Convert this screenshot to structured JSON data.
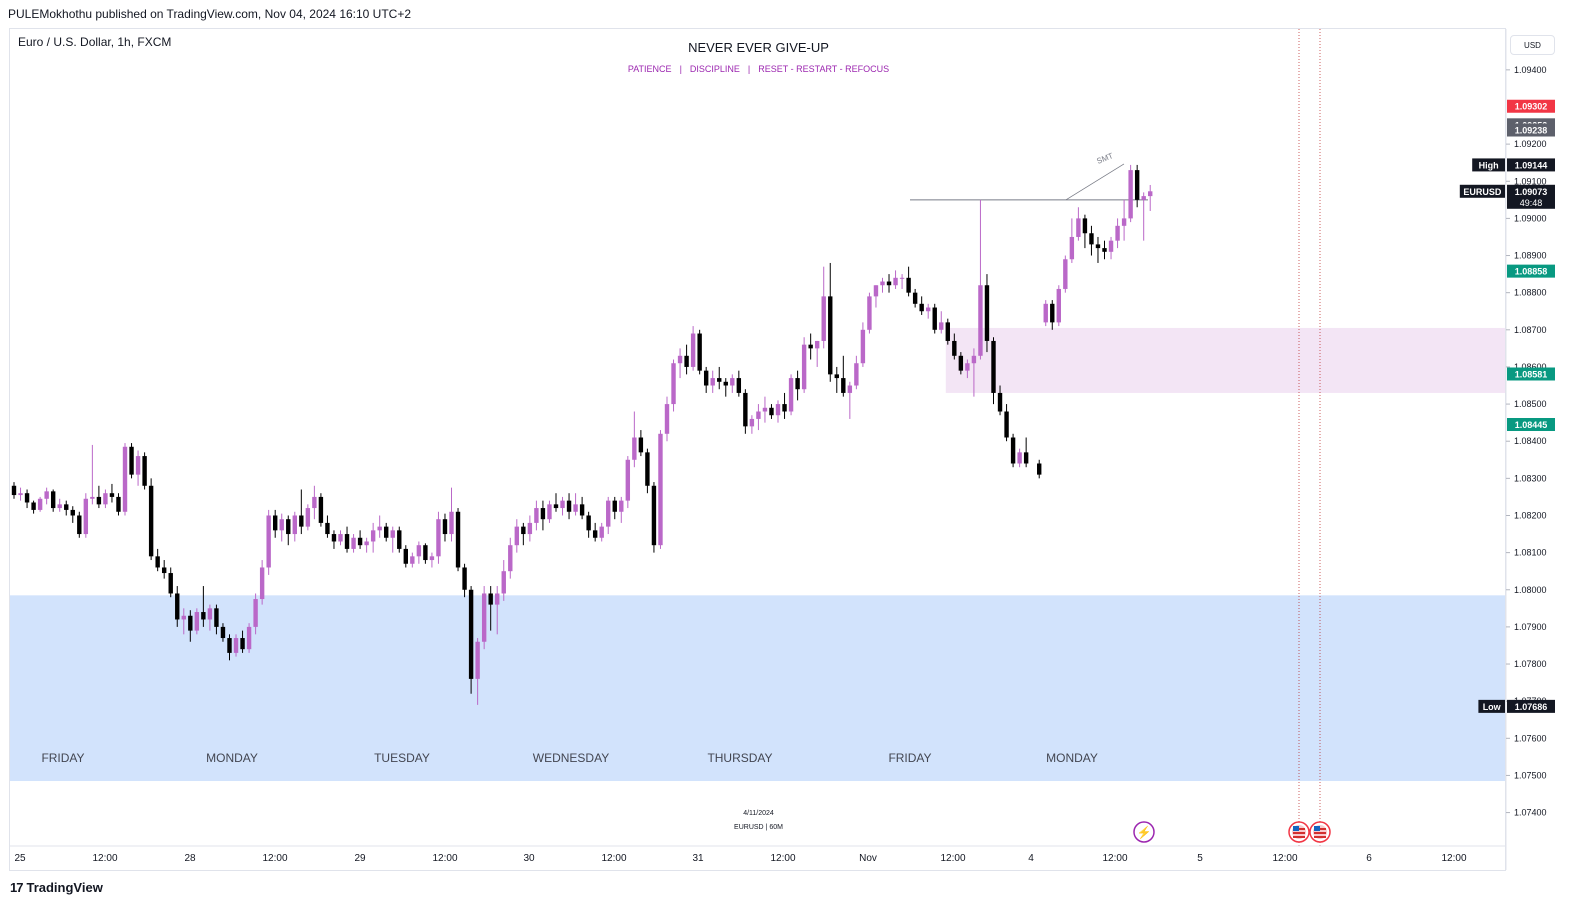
{
  "header": {
    "published": "PULEMokhothu published on TradingView.com, Nov 04, 2024 16:10 UTC+2",
    "symbol": "Euro / U.S. Dollar, 1h, FXCM",
    "currency": "USD",
    "brand": "TradingView",
    "brand_mark": "17"
  },
  "annotations": {
    "title": "NEVER EVER GIVE-UP",
    "subtitle_items": [
      "PATIENCE",
      "DISCIPLINE",
      "RESET - RESTART - REFOCUS"
    ],
    "subtitle_separator": "|",
    "smt": "SMT",
    "watermark_date": "4/11/2024",
    "watermark_symbol": "EURUSD | 60M",
    "days": [
      "FRIDAY",
      "MONDAY",
      "TUESDAY",
      "WEDNESDAY",
      "THURSDAY",
      "FRIDAY",
      "MONDAY"
    ]
  },
  "colors": {
    "bull": "#ba68c8",
    "bear": "#000000",
    "demand_zone": "#d2e3fc",
    "fvg_zone": "#f3e5f5",
    "green_label": "#089981",
    "red_label": "#f23645",
    "grey_label": "#5d606b"
  },
  "chart_data": {
    "type": "candlestick",
    "symbol": "EURUSD",
    "timeframe": "1h",
    "ylim": [
      1.0731,
      1.0951
    ],
    "y_ticks": [
      "1.09400",
      "1.09200",
      "1.09100",
      "1.09000",
      "1.08900",
      "1.08800",
      "1.08700",
      "1.08600",
      "1.08500",
      "1.08400",
      "1.08300",
      "1.08200",
      "1.08100",
      "1.08000",
      "1.07900",
      "1.07800",
      "1.07700",
      "1.07600",
      "1.07500",
      "1.07400"
    ],
    "x_ticks": [
      "25",
      "12:00",
      "28",
      "12:00",
      "29",
      "12:00",
      "30",
      "12:00",
      "31",
      "12:00",
      "Nov",
      "12:00",
      "4",
      "12:00",
      "5",
      "12:00",
      "6",
      "12:00"
    ],
    "price_labels": [
      {
        "text": "1.09302",
        "price": 1.09302,
        "kind": "red"
      },
      {
        "text": "1.09252",
        "price": 1.09252,
        "kind": "grey"
      },
      {
        "text": "1.09238",
        "price": 1.09238,
        "kind": "grey"
      },
      {
        "text": "1.09144",
        "price": 1.09144,
        "kind": "dark",
        "tag": "High"
      },
      {
        "text": "1.09073",
        "price": 1.09073,
        "kind": "dark",
        "tag": "EURUSD",
        "sub": "49:48"
      },
      {
        "text": "1.08858",
        "price": 1.08858,
        "kind": "green"
      },
      {
        "text": "1.08581",
        "price": 1.08581,
        "kind": "green"
      },
      {
        "text": "1.08445",
        "price": 1.08445,
        "kind": "green"
      },
      {
        "text": "1.07686",
        "price": 1.07686,
        "kind": "dark",
        "tag": "Low"
      }
    ],
    "zones": [
      {
        "name": "demand",
        "top": 1.07985,
        "bottom": 1.07485,
        "start_bar": 0
      },
      {
        "name": "fvg",
        "top": 1.08705,
        "bottom": 1.0853,
        "start_bar": 143
      }
    ],
    "resistance_price": 1.0905,
    "bars": [
      [
        1.0828,
        1.0829,
        1.08245,
        1.08255
      ],
      [
        1.08255,
        1.08275,
        1.0824,
        1.0826
      ],
      [
        1.0826,
        1.0827,
        1.0822,
        1.08235
      ],
      [
        1.08235,
        1.0824,
        1.08205,
        1.08215
      ],
      [
        1.08215,
        1.0825,
        1.0821,
        1.08245
      ],
      [
        1.08245,
        1.08275,
        1.0823,
        1.08265
      ],
      [
        1.08265,
        1.0827,
        1.0821,
        1.0822
      ],
      [
        1.0822,
        1.08245,
        1.0821,
        1.0823
      ],
      [
        1.0823,
        1.0824,
        1.082,
        1.08215
      ],
      [
        1.08215,
        1.08225,
        1.0818,
        1.082
      ],
      [
        1.082,
        1.0821,
        1.0814,
        1.0815
      ],
      [
        1.0815,
        1.0826,
        1.0814,
        1.08245
      ],
      [
        1.08245,
        1.0839,
        1.0823,
        1.0825
      ],
      [
        1.0825,
        1.0828,
        1.0822,
        1.0823
      ],
      [
        1.0823,
        1.0827,
        1.0822,
        1.0826
      ],
      [
        1.0826,
        1.08285,
        1.08235,
        1.0825
      ],
      [
        1.0825,
        1.0826,
        1.082,
        1.0821
      ],
      [
        1.0821,
        1.08395,
        1.082,
        1.08385
      ],
      [
        1.08385,
        1.08395,
        1.083,
        1.0831
      ],
      [
        1.0831,
        1.08375,
        1.0828,
        1.0836
      ],
      [
        1.0836,
        1.0837,
        1.0827,
        1.0828
      ],
      [
        1.0828,
        1.083,
        1.0808,
        1.0809
      ],
      [
        1.0809,
        1.0811,
        1.0805,
        1.0806
      ],
      [
        1.0806,
        1.0808,
        1.0803,
        1.08045
      ],
      [
        1.08045,
        1.0806,
        1.0798,
        1.0799
      ],
      [
        1.0799,
        1.0801,
        1.079,
        1.0792
      ],
      [
        1.0792,
        1.0795,
        1.0788,
        1.0793
      ],
      [
        1.0793,
        1.07945,
        1.0786,
        1.0789
      ],
      [
        1.0789,
        1.0795,
        1.0788,
        1.0794
      ],
      [
        1.0794,
        1.0801,
        1.079,
        1.0792
      ],
      [
        1.0792,
        1.0796,
        1.0789,
        1.0795
      ],
      [
        1.0795,
        1.0796,
        1.0788,
        1.079
      ],
      [
        1.079,
        1.0791,
        1.0786,
        1.0787
      ],
      [
        1.0787,
        1.0788,
        1.0781,
        1.0783
      ],
      [
        1.0783,
        1.0788,
        1.0782,
        1.0787
      ],
      [
        1.0787,
        1.0789,
        1.0783,
        1.0784
      ],
      [
        1.0784,
        1.0791,
        1.0783,
        1.079
      ],
      [
        1.079,
        1.0799,
        1.0788,
        1.07975
      ],
      [
        1.07975,
        1.0808,
        1.0796,
        1.0806
      ],
      [
        1.0806,
        1.08215,
        1.0804,
        1.082
      ],
      [
        1.082,
        1.08215,
        1.0814,
        1.0816
      ],
      [
        1.0816,
        1.08205,
        1.0813,
        1.0819
      ],
      [
        1.0819,
        1.082,
        1.0812,
        1.0815
      ],
      [
        1.0815,
        1.0821,
        1.0813,
        1.082
      ],
      [
        1.082,
        1.0827,
        1.0815,
        1.0817
      ],
      [
        1.0817,
        1.0823,
        1.0816,
        1.0822
      ],
      [
        1.0822,
        1.0828,
        1.0819,
        1.0825
      ],
      [
        1.0825,
        1.0826,
        1.0817,
        1.0818
      ],
      [
        1.0818,
        1.082,
        1.0814,
        1.0815
      ],
      [
        1.0815,
        1.0816,
        1.0811,
        1.0813
      ],
      [
        1.0813,
        1.0816,
        1.0812,
        1.0815
      ],
      [
        1.0815,
        1.0817,
        1.081,
        1.0811
      ],
      [
        1.0811,
        1.0815,
        1.081,
        1.0814
      ],
      [
        1.0814,
        1.0816,
        1.0811,
        1.0812
      ],
      [
        1.0812,
        1.0814,
        1.081,
        1.0813
      ],
      [
        1.0813,
        1.0818,
        1.081,
        1.0816
      ],
      [
        1.0816,
        1.082,
        1.0814,
        1.0817
      ],
      [
        1.0817,
        1.0818,
        1.0813,
        1.0814
      ],
      [
        1.0814,
        1.0817,
        1.081,
        1.0816
      ],
      [
        1.0816,
        1.0817,
        1.081,
        1.0811
      ],
      [
        1.0811,
        1.0812,
        1.0806,
        1.0807
      ],
      [
        1.0807,
        1.081,
        1.0806,
        1.0809
      ],
      [
        1.0809,
        1.0813,
        1.0807,
        1.0812
      ],
      [
        1.0812,
        1.08125,
        1.0807,
        1.0808
      ],
      [
        1.0808,
        1.081,
        1.0806,
        1.0809
      ],
      [
        1.0809,
        1.0821,
        1.0807,
        1.0819
      ],
      [
        1.0819,
        1.08205,
        1.0813,
        1.0815
      ],
      [
        1.0815,
        1.08275,
        1.0813,
        1.0821
      ],
      [
        1.0821,
        1.0822,
        1.0805,
        1.0806
      ],
      [
        1.0806,
        1.0807,
        1.0798,
        1.08
      ],
      [
        1.08,
        1.0801,
        1.0772,
        1.0776
      ],
      [
        1.0776,
        1.0787,
        1.0769,
        1.0786
      ],
      [
        1.0786,
        1.0801,
        1.0784,
        1.0799
      ],
      [
        1.0799,
        1.0801,
        1.0789,
        1.0796
      ],
      [
        1.0796,
        1.0801,
        1.0788,
        1.0799
      ],
      [
        1.0799,
        1.0808,
        1.0797,
        1.0805
      ],
      [
        1.0805,
        1.0814,
        1.0803,
        1.0812
      ],
      [
        1.0812,
        1.0819,
        1.081,
        1.0817
      ],
      [
        1.0817,
        1.0818,
        1.0812,
        1.0815
      ],
      [
        1.0815,
        1.082,
        1.0813,
        1.0818
      ],
      [
        1.0818,
        1.0824,
        1.0816,
        1.0822
      ],
      [
        1.0822,
        1.0824,
        1.0816,
        1.0819
      ],
      [
        1.0819,
        1.0824,
        1.0818,
        1.0823
      ],
      [
        1.0823,
        1.0826,
        1.0821,
        1.0822
      ],
      [
        1.0822,
        1.0825,
        1.082,
        1.0824
      ],
      [
        1.0824,
        1.0826,
        1.0819,
        1.0821
      ],
      [
        1.0821,
        1.0826,
        1.082,
        1.0823
      ],
      [
        1.0823,
        1.0825,
        1.0819,
        1.082
      ],
      [
        1.082,
        1.0821,
        1.0814,
        1.0816
      ],
      [
        1.0816,
        1.0818,
        1.0813,
        1.0814
      ],
      [
        1.0814,
        1.0818,
        1.0813,
        1.0817
      ],
      [
        1.0817,
        1.0825,
        1.0815,
        1.0824
      ],
      [
        1.0824,
        1.0825,
        1.0819,
        1.0821
      ],
      [
        1.0821,
        1.0825,
        1.0818,
        1.0824
      ],
      [
        1.0824,
        1.0836,
        1.0822,
        1.0835
      ],
      [
        1.0835,
        1.0848,
        1.0833,
        1.0841
      ],
      [
        1.0841,
        1.0843,
        1.0836,
        1.0837
      ],
      [
        1.0837,
        1.0838,
        1.0826,
        1.0828
      ],
      [
        1.0828,
        1.0829,
        1.081,
        1.0812
      ],
      [
        1.0812,
        1.0843,
        1.0811,
        1.0842
      ],
      [
        1.0842,
        1.0852,
        1.084,
        1.085
      ],
      [
        1.085,
        1.0862,
        1.0848,
        1.0861
      ],
      [
        1.0861,
        1.0865,
        1.0857,
        1.0863
      ],
      [
        1.0863,
        1.0866,
        1.0858,
        1.086
      ],
      [
        1.086,
        1.0871,
        1.0859,
        1.0869
      ],
      [
        1.0869,
        1.087,
        1.0858,
        1.0859
      ],
      [
        1.0859,
        1.086,
        1.0853,
        1.0855
      ],
      [
        1.0855,
        1.0859,
        1.0853,
        1.0857
      ],
      [
        1.0857,
        1.086,
        1.0854,
        1.0856
      ],
      [
        1.0856,
        1.0857,
        1.0852,
        1.0855
      ],
      [
        1.0855,
        1.0858,
        1.0853,
        1.0857
      ],
      [
        1.0857,
        1.0859,
        1.0852,
        1.0853
      ],
      [
        1.0853,
        1.0854,
        1.0842,
        1.0844
      ],
      [
        1.0844,
        1.0847,
        1.0842,
        1.0846
      ],
      [
        1.0846,
        1.085,
        1.0843,
        1.0848
      ],
      [
        1.0848,
        1.0852,
        1.0845,
        1.0849
      ],
      [
        1.0849,
        1.085,
        1.0846,
        1.0847
      ],
      [
        1.0847,
        1.0851,
        1.0845,
        1.085
      ],
      [
        1.085,
        1.0853,
        1.0846,
        1.0848
      ],
      [
        1.0848,
        1.0858,
        1.0847,
        1.0857
      ],
      [
        1.0857,
        1.0859,
        1.0851,
        1.0854
      ],
      [
        1.0854,
        1.0868,
        1.0853,
        1.0866
      ],
      [
        1.0866,
        1.0869,
        1.0862,
        1.0865
      ],
      [
        1.0865,
        1.0867,
        1.086,
        1.0867
      ],
      [
        1.0867,
        1.0887,
        1.0865,
        1.0879
      ],
      [
        1.0879,
        1.0888,
        1.0856,
        1.0858
      ],
      [
        1.0858,
        1.086,
        1.0853,
        1.0857
      ],
      [
        1.0857,
        1.0863,
        1.0852,
        1.0853
      ],
      [
        1.0853,
        1.0856,
        1.0846,
        1.0855
      ],
      [
        1.0855,
        1.0863,
        1.0854,
        1.0861
      ],
      [
        1.0861,
        1.0872,
        1.086,
        1.087
      ],
      [
        1.087,
        1.088,
        1.0869,
        1.0879
      ],
      [
        1.0879,
        1.0882,
        1.0876,
        1.0882
      ],
      [
        1.0882,
        1.0884,
        1.088,
        1.0883
      ],
      [
        1.0883,
        1.0885,
        1.088,
        1.0882
      ],
      [
        1.0882,
        1.0886,
        1.0881,
        1.0884
      ],
      [
        1.0884,
        1.0885,
        1.0881,
        1.0884
      ],
      [
        1.0884,
        1.0887,
        1.0879,
        1.088
      ],
      [
        1.088,
        1.0881,
        1.0876,
        1.0877
      ],
      [
        1.0877,
        1.0879,
        1.0874,
        1.0875
      ],
      [
        1.0875,
        1.0877,
        1.0873,
        1.0876
      ],
      [
        1.0876,
        1.0877,
        1.0869,
        1.087
      ],
      [
        1.087,
        1.0875,
        1.0869,
        1.0872
      ],
      [
        1.0872,
        1.0873,
        1.0866,
        1.0867
      ],
      [
        1.0867,
        1.0869,
        1.0862,
        1.0863
      ],
      [
        1.0863,
        1.0864,
        1.0858,
        1.0859
      ],
      [
        1.0859,
        1.0862,
        1.0857,
        1.0861
      ],
      [
        1.0861,
        1.0865,
        1.0852,
        1.0863
      ],
      [
        1.0863,
        1.0905,
        1.0862,
        1.0882
      ],
      [
        1.0882,
        1.0885,
        1.0864,
        1.0867
      ],
      [
        1.0867,
        1.0868,
        1.085,
        1.0853
      ],
      [
        1.0853,
        1.0855,
        1.0847,
        1.0848
      ],
      [
        1.0848,
        1.085,
        1.084,
        1.0841
      ],
      [
        1.0841,
        1.0842,
        1.0833,
        1.0834
      ],
      [
        1.0834,
        1.0838,
        1.0833,
        1.0837
      ],
      [
        1.0837,
        1.0841,
        1.0833,
        1.0834
      ],
      [
        1.0834,
        1.0835,
        1.083,
        1.0831
      ],
      [
        1.0872,
        1.0878,
        1.0871,
        1.0877
      ],
      [
        1.0877,
        1.0878,
        1.087,
        1.0872
      ],
      [
        1.0872,
        1.0882,
        1.0871,
        1.0881
      ],
      [
        1.0881,
        1.089,
        1.088,
        1.0889
      ],
      [
        1.0889,
        1.09,
        1.0888,
        1.0895
      ],
      [
        1.0895,
        1.0903,
        1.0894,
        1.09
      ],
      [
        1.09,
        1.0901,
        1.0892,
        1.0896
      ],
      [
        1.0896,
        1.0898,
        1.089,
        1.0893
      ],
      [
        1.0893,
        1.0895,
        1.0888,
        1.0892
      ],
      [
        1.0892,
        1.0894,
        1.0889,
        1.0891
      ],
      [
        1.0891,
        1.0895,
        1.0889,
        1.0894
      ],
      [
        1.0894,
        1.09,
        1.0892,
        1.0898
      ],
      [
        1.0898,
        1.0905,
        1.0894,
        1.09
      ],
      [
        1.09,
        1.09144,
        1.0899,
        1.0913
      ],
      [
        1.0913,
        1.09144,
        1.0903,
        1.0905
      ],
      [
        1.0905,
        1.0907,
        1.0894,
        1.0906
      ],
      [
        1.0906,
        1.0909,
        1.0902,
        1.09073
      ]
    ],
    "bar_gap_after": 155,
    "gap_bars": 1
  }
}
